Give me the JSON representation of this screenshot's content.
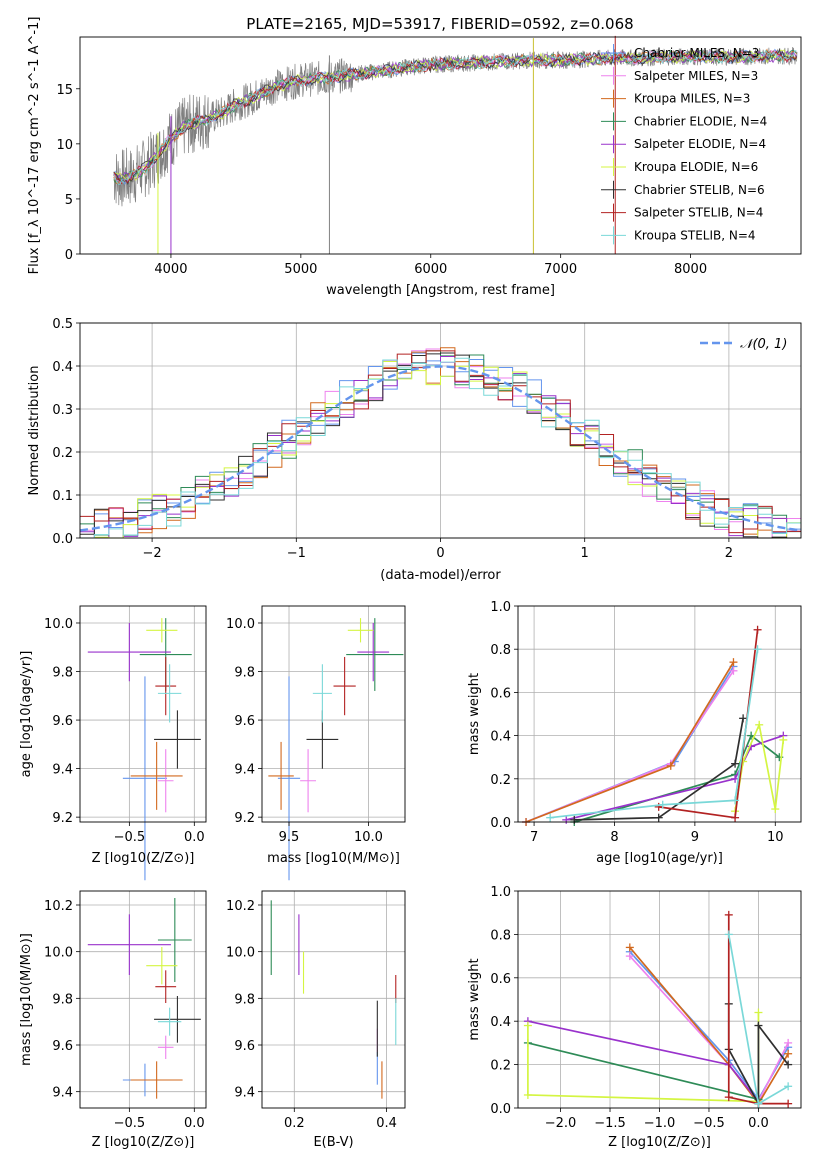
{
  "chart_data": [
    {
      "type": "line",
      "title": "PLATE=2165, MJD=53917, FIBERID=0592, z=0.068",
      "xlabel": "wavelength [Angstrom, rest frame]",
      "ylabel": "Flux [f_λ 10^-17 erg cm^-2 s^-1 A^-1]",
      "xlim": [
        3300,
        8850
      ],
      "ylim": [
        0,
        19.7
      ],
      "xticks": [
        "4000",
        "5000",
        "6000",
        "7000",
        "8000"
      ],
      "yticks": [
        "0",
        "5",
        "10",
        "15"
      ],
      "grid": false,
      "legend_position": "upper-right",
      "legend": [
        "Chabrier MILES, N_SSP=3",
        "Salpeter MILES, N_SSP=3",
        "Kroupa MILES, N_SSP=3",
        "Chabrier ELODIE, N_SSP=4",
        "Salpeter ELODIE, N_SSP=4",
        "Kroupa ELODIE, N_SSP=6",
        "Chabrier STELIB, N_SSP=6",
        "Salpeter STELIB, N_SSP=4",
        "Kroupa STELIB, N_SSP=4"
      ],
      "series_colors": [
        "#6495ed",
        "#ee82ee",
        "#d2691e",
        "#2e8b57",
        "#9932cc",
        "#d4f542",
        "#2f2f2f",
        "#b22222",
        "#7ad8d8"
      ],
      "data_color": "#808080",
      "x": [
        3550,
        3600,
        3700,
        3800,
        3900,
        4000,
        4100,
        4200,
        4300,
        4400,
        4500,
        4600,
        4700,
        4800,
        4900,
        5000,
        5200,
        5400,
        5600,
        5800,
        6000,
        6200,
        6400,
        6600,
        6800,
        7000,
        7200,
        7400,
        7600,
        7800,
        8000,
        8200,
        8400,
        8600,
        8850
      ],
      "y": [
        7.2,
        6.8,
        7.0,
        7.8,
        9.0,
        10.5,
        11.5,
        12.0,
        12.3,
        12.8,
        13.6,
        14.0,
        14.6,
        15.2,
        15.5,
        15.8,
        16.0,
        16.3,
        16.6,
        16.9,
        17.2,
        17.3,
        17.4,
        17.5,
        17.6,
        17.6,
        17.7,
        17.8,
        17.8,
        17.9,
        17.9,
        17.9,
        17.9,
        18.0,
        18.0
      ]
    },
    {
      "type": "histogram",
      "xlabel": "(data-model)/error",
      "ylabel": "Normed distribution",
      "xlim": [
        -2.5,
        2.5
      ],
      "ylim": [
        0,
        0.5
      ],
      "xticks": [
        "−2",
        "−1",
        "0",
        "1",
        "2"
      ],
      "yticks": [
        "0.0",
        "0.1",
        "0.2",
        "0.3",
        "0.4",
        "0.5"
      ],
      "grid": true,
      "legend_position": "upper-right",
      "legend": [
        "𝒩(0, 1)"
      ],
      "normal_color": "#6495ed",
      "bin_width": 0.1
    },
    {
      "type": "scatter",
      "xlabel": "Z [log10(Z/Z⊙)]",
      "ylabel": "age [log10(age/yr)]",
      "xlim": [
        -0.88,
        0.09
      ],
      "ylim": [
        9.18,
        10.07
      ],
      "xticks": [
        "−0.5",
        "0.0"
      ],
      "yticks": [
        "9.2",
        "9.4",
        "9.6",
        "9.8",
        "10.0"
      ],
      "grid": true,
      "series": [
        {
          "name": "Chabrier MILES",
          "x": -0.38,
          "y": 9.36,
          "xerr": 0.17,
          "yerr": 0.42
        },
        {
          "name": "Salpeter MILES",
          "x": -0.22,
          "y": 9.35,
          "xerr": 0.06,
          "yerr": 0.13
        },
        {
          "name": "Kroupa MILES",
          "x": -0.29,
          "y": 9.37,
          "xerr": 0.2,
          "yerr": 0.14
        },
        {
          "name": "Chabrier ELODIE",
          "x": -0.22,
          "y": 9.87,
          "xerr": 0.2,
          "yerr": 0.15
        },
        {
          "name": "Salpeter ELODIE",
          "x": -0.5,
          "y": 9.88,
          "xerr": 0.32,
          "yerr": 0.12
        },
        {
          "name": "Kroupa ELODIE",
          "x": -0.25,
          "y": 9.97,
          "xerr": 0.12,
          "yerr": 0.05
        },
        {
          "name": "Chabrier STELIB",
          "x": -0.13,
          "y": 9.52,
          "xerr": 0.18,
          "yerr": 0.12
        },
        {
          "name": "Salpeter STELIB",
          "x": -0.22,
          "y": 9.74,
          "xerr": 0.08,
          "yerr": 0.12
        },
        {
          "name": "Kroupa STELIB",
          "x": -0.19,
          "y": 9.71,
          "xerr": 0.09,
          "yerr": 0.12
        }
      ]
    },
    {
      "type": "scatter",
      "xlabel": "mass [log10(M/M⊙)]",
      "ylabel": "",
      "xlim": [
        9.33,
        10.23
      ],
      "ylim": [
        9.18,
        10.07
      ],
      "xticks": [
        "9.5",
        "10.0"
      ],
      "yticks": [
        "9.2",
        "9.4",
        "9.6",
        "9.8",
        "10.0"
      ],
      "grid": true,
      "series": [
        {
          "name": "Chabrier MILES",
          "x": 9.5,
          "y": 9.36,
          "xerr": 0.07,
          "yerr": 0.42
        },
        {
          "name": "Salpeter MILES",
          "x": 9.62,
          "y": 9.35,
          "xerr": 0.05,
          "yerr": 0.13
        },
        {
          "name": "Kroupa MILES",
          "x": 9.45,
          "y": 9.37,
          "xerr": 0.08,
          "yerr": 0.14
        },
        {
          "name": "Chabrier ELODIE",
          "x": 10.04,
          "y": 9.87,
          "xerr": 0.18,
          "yerr": 0.15
        },
        {
          "name": "Salpeter ELODIE",
          "x": 10.03,
          "y": 9.88,
          "xerr": 0.1,
          "yerr": 0.12
        },
        {
          "name": "Kroupa ELODIE",
          "x": 9.95,
          "y": 9.97,
          "xerr": 0.08,
          "yerr": 0.05
        },
        {
          "name": "Chabrier STELIB",
          "x": 9.71,
          "y": 9.52,
          "xerr": 0.1,
          "yerr": 0.12
        },
        {
          "name": "Salpeter STELIB",
          "x": 9.85,
          "y": 9.74,
          "xerr": 0.07,
          "yerr": 0.12
        },
        {
          "name": "Kroupa STELIB",
          "x": 9.71,
          "y": 9.71,
          "xerr": 0.06,
          "yerr": 0.12
        }
      ]
    },
    {
      "type": "line",
      "xlabel": "age [log10(age/yr)]",
      "ylabel": "mass weight",
      "xlim": [
        6.8,
        10.32
      ],
      "ylim": [
        0,
        1
      ],
      "xticks": [
        "7",
        "8",
        "9",
        "10"
      ],
      "yticks": [
        "0.0",
        "0.2",
        "0.4",
        "0.6",
        "0.8",
        "1.0"
      ],
      "grid": true,
      "series": [
        {
          "name": "Chabrier MILES",
          "x": [
            6.9,
            8.75,
            9.48
          ],
          "y": [
            0.0,
            0.28,
            0.72
          ]
        },
        {
          "name": "Salpeter MILES",
          "x": [
            6.9,
            8.7,
            9.48
          ],
          "y": [
            0.0,
            0.27,
            0.7
          ]
        },
        {
          "name": "Kroupa MILES",
          "x": [
            6.9,
            8.7,
            9.48
          ],
          "y": [
            0.0,
            0.26,
            0.74
          ]
        },
        {
          "name": "Chabrier ELODIE",
          "x": [
            7.5,
            9.5,
            9.7,
            10.05
          ],
          "y": [
            0.0,
            0.22,
            0.4,
            0.3
          ]
        },
        {
          "name": "Salpeter ELODIE",
          "x": [
            7.4,
            9.5,
            9.7,
            10.1
          ],
          "y": [
            0.01,
            0.2,
            0.35,
            0.4
          ]
        },
        {
          "name": "Kroupa ELODIE",
          "x": [
            9.5,
            9.6,
            9.8,
            10.0,
            10.1
          ],
          "y": [
            0.05,
            0.28,
            0.45,
            0.06,
            0.38
          ]
        },
        {
          "name": "Chabrier STELIB",
          "x": [
            7.5,
            8.55,
            9.5,
            9.6
          ],
          "y": [
            0.01,
            0.02,
            0.27,
            0.48
          ]
        },
        {
          "name": "Salpeter STELIB",
          "x": [
            8.55,
            9.5,
            9.78
          ],
          "y": [
            0.07,
            0.02,
            0.89
          ]
        },
        {
          "name": "Kroupa STELIB",
          "x": [
            7.2,
            8.6,
            9.5,
            9.78
          ],
          "y": [
            0.02,
            0.08,
            0.1,
            0.8
          ]
        }
      ]
    },
    {
      "type": "scatter",
      "xlabel": "Z [log10(Z/Z⊙)]",
      "ylabel": "mass [log10(M/M⊙)]",
      "xlim": [
        -0.88,
        0.09
      ],
      "ylim": [
        9.33,
        10.26
      ],
      "xticks": [
        "−0.5",
        "0.0"
      ],
      "yticks": [
        "9.4",
        "9.6",
        "9.8",
        "10.0",
        "10.2"
      ],
      "grid": true,
      "series": [
        {
          "name": "Chabrier MILES",
          "x": -0.38,
          "y": 9.45,
          "xerr": 0.17,
          "yerr": 0.07
        },
        {
          "name": "Salpeter MILES",
          "x": -0.22,
          "y": 9.59,
          "xerr": 0.06,
          "yerr": 0.05
        },
        {
          "name": "Kroupa MILES",
          "x": -0.29,
          "y": 9.45,
          "xerr": 0.2,
          "yerr": 0.08
        },
        {
          "name": "Chabrier ELODIE",
          "x": -0.15,
          "y": 10.05,
          "xerr": 0.13,
          "yerr": 0.18
        },
        {
          "name": "Salpeter ELODIE",
          "x": -0.5,
          "y": 10.03,
          "xerr": 0.32,
          "yerr": 0.13
        },
        {
          "name": "Kroupa ELODIE",
          "x": -0.25,
          "y": 9.94,
          "xerr": 0.12,
          "yerr": 0.08
        },
        {
          "name": "Chabrier STELIB",
          "x": -0.13,
          "y": 9.71,
          "xerr": 0.18,
          "yerr": 0.1
        },
        {
          "name": "Salpeter STELIB",
          "x": -0.22,
          "y": 9.85,
          "xerr": 0.08,
          "yerr": 0.07
        },
        {
          "name": "Kroupa STELIB",
          "x": -0.19,
          "y": 9.7,
          "xerr": 0.09,
          "yerr": 0.06
        }
      ]
    },
    {
      "type": "scatter",
      "xlabel": "E(B-V)",
      "ylabel": "",
      "xlim": [
        0.13,
        0.44
      ],
      "ylim": [
        9.33,
        10.26
      ],
      "xticks": [
        "0.2",
        "0.4"
      ],
      "yticks": [
        "9.4",
        "9.6",
        "9.8",
        "10.0",
        "10.2"
      ],
      "grid": true,
      "series": [
        {
          "name": "Chabrier MILES",
          "x": 0.38,
          "y": 9.5,
          "xerr": 0.0,
          "yerr": 0.07
        },
        {
          "name": "Salpeter MILES",
          "x": 0.38,
          "y": 9.62,
          "xerr": 0.0,
          "yerr": 0.05
        },
        {
          "name": "Kroupa MILES",
          "x": 0.39,
          "y": 9.45,
          "xerr": 0.0,
          "yerr": 0.08
        },
        {
          "name": "Chabrier ELODIE",
          "x": 0.15,
          "y": 10.06,
          "xerr": 0.0,
          "yerr": 0.16
        },
        {
          "name": "Salpeter ELODIE",
          "x": 0.21,
          "y": 10.03,
          "xerr": 0.0,
          "yerr": 0.13
        },
        {
          "name": "Kroupa ELODIE",
          "x": 0.22,
          "y": 9.91,
          "xerr": 0.0,
          "yerr": 0.09
        },
        {
          "name": "Chabrier STELIB",
          "x": 0.38,
          "y": 9.67,
          "xerr": 0.0,
          "yerr": 0.12
        },
        {
          "name": "Salpeter STELIB",
          "x": 0.42,
          "y": 9.84,
          "xerr": 0.0,
          "yerr": 0.06
        },
        {
          "name": "Kroupa STELIB",
          "x": 0.42,
          "y": 9.7,
          "xerr": 0.0,
          "yerr": 0.1
        }
      ]
    },
    {
      "type": "line",
      "xlabel": "Z [log10(Z/Z⊙)]",
      "ylabel": "mass weight",
      "xlim": [
        -2.43,
        0.43
      ],
      "ylim": [
        0,
        1
      ],
      "xticks": [
        "−2.0",
        "−1.5",
        "−1.0",
        "−0.5",
        "0.0"
      ],
      "yticks": [
        "0.0",
        "0.2",
        "0.4",
        "0.6",
        "0.8",
        "1.0"
      ],
      "grid": true,
      "series": [
        {
          "name": "Chabrier MILES",
          "x": [
            -1.3,
            -0.3,
            0.0,
            0.3
          ],
          "y": [
            0.72,
            0.22,
            0.04,
            0.28
          ]
        },
        {
          "name": "Salpeter MILES",
          "x": [
            -1.3,
            -0.3,
            0.0,
            0.3
          ],
          "y": [
            0.7,
            0.2,
            0.03,
            0.3
          ]
        },
        {
          "name": "Kroupa MILES",
          "x": [
            -1.3,
            -0.3,
            0.0,
            0.3
          ],
          "y": [
            0.74,
            0.2,
            0.02,
            0.25
          ]
        },
        {
          "name": "Chabrier ELODIE",
          "x": [
            -2.33,
            0.0
          ],
          "y": [
            0.3,
            0.04
          ]
        },
        {
          "name": "Salpeter ELODIE",
          "x": [
            -2.33,
            -0.3,
            0.0
          ],
          "y": [
            0.4,
            0.2,
            0.03
          ]
        },
        {
          "name": "Kroupa ELODIE",
          "x": [
            -2.33,
            -2.33,
            0.0,
            0.0
          ],
          "y": [
            0.38,
            0.06,
            0.03,
            0.44
          ]
        },
        {
          "name": "Chabrier STELIB",
          "x": [
            -0.3,
            -0.3,
            0.0,
            0.0,
            0.3
          ],
          "y": [
            0.48,
            0.27,
            0.02,
            0.38,
            0.2
          ]
        },
        {
          "name": "Salpeter STELIB",
          "x": [
            -0.3,
            -0.3,
            0.0,
            0.3
          ],
          "y": [
            0.89,
            0.05,
            0.02,
            0.02
          ]
        },
        {
          "name": "Kroupa STELIB",
          "x": [
            -0.3,
            0.0,
            0.3
          ],
          "y": [
            0.8,
            0.02,
            0.1
          ]
        }
      ]
    }
  ]
}
